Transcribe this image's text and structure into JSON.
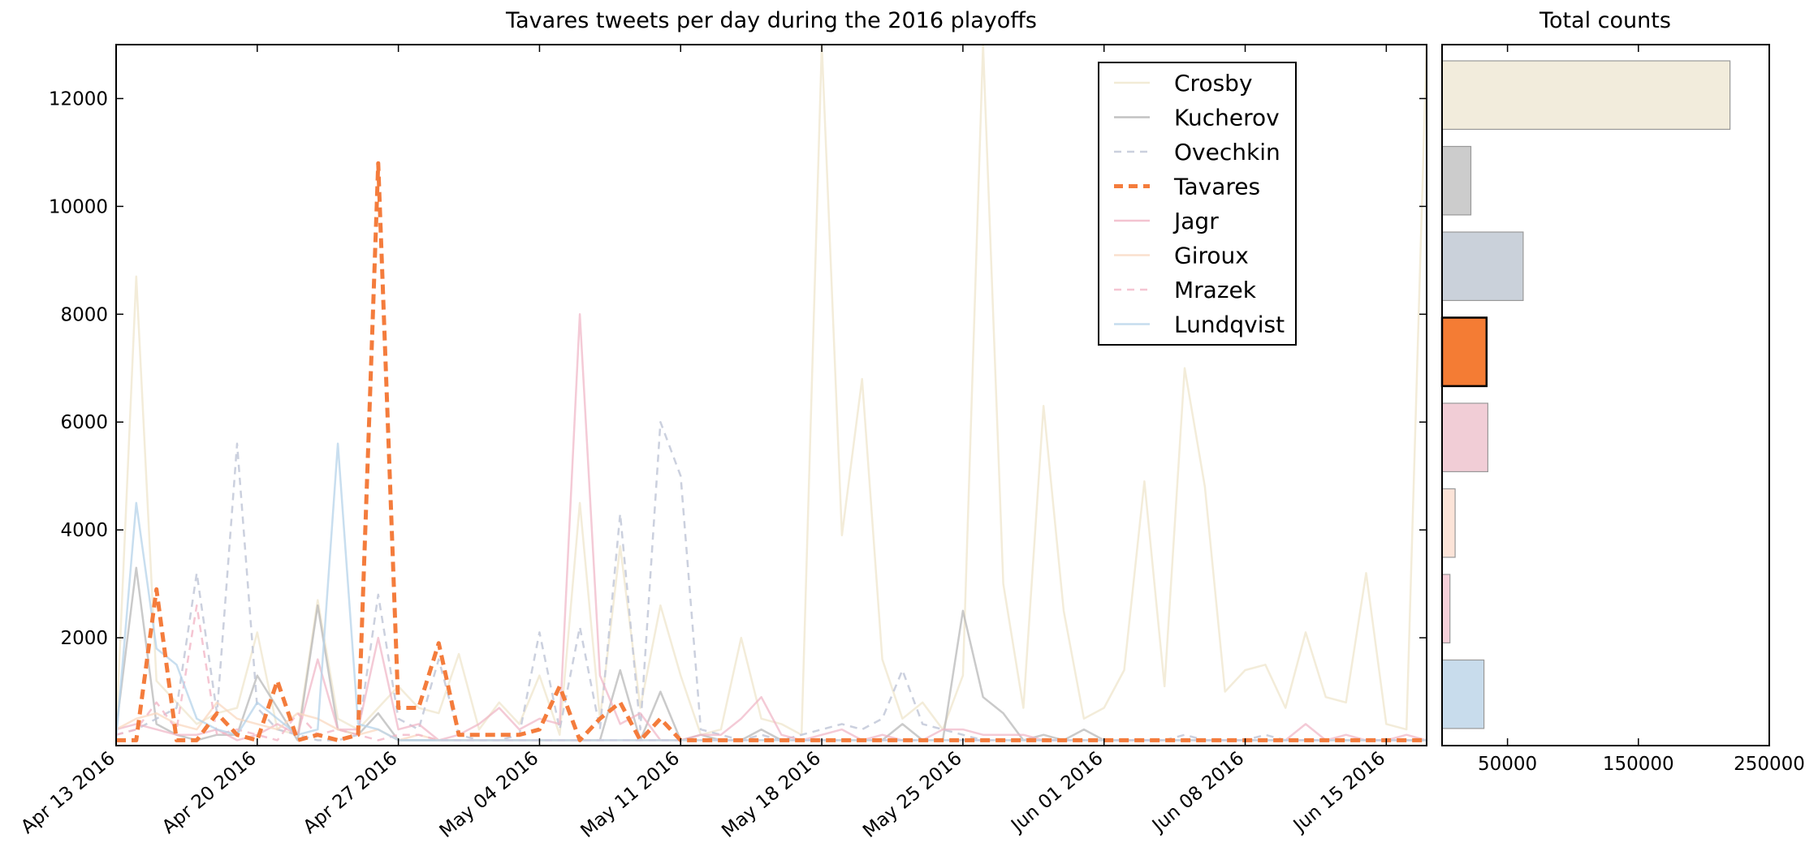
{
  "chart_data": [
    {
      "type": "line",
      "title": "Tavares tweets per day during the 2016 playoffs",
      "xlabel": "",
      "ylabel": "",
      "x_range": [
        "2016-04-13",
        "2016-06-17"
      ],
      "ylim": [
        0,
        13000
      ],
      "y_ticks": [
        2000,
        4000,
        6000,
        8000,
        10000,
        12000
      ],
      "x_ticks": [
        {
          "date": "2016-04-13",
          "label": "Apr 13 2016"
        },
        {
          "date": "2016-04-20",
          "label": "Apr 20 2016"
        },
        {
          "date": "2016-04-27",
          "label": "Apr 27 2016"
        },
        {
          "date": "2016-05-04",
          "label": "May 04 2016"
        },
        {
          "date": "2016-05-11",
          "label": "May 11 2016"
        },
        {
          "date": "2016-05-18",
          "label": "May 18 2016"
        },
        {
          "date": "2016-05-25",
          "label": "May 25 2016"
        },
        {
          "date": "2016-06-01",
          "label": "Jun 01 2016"
        },
        {
          "date": "2016-06-08",
          "label": "Jun 08 2016"
        },
        {
          "date": "2016-06-15",
          "label": "Jun 15 2016"
        }
      ],
      "grid": false,
      "legend_position": "top-right",
      "x": [
        "2016-04-13",
        "2016-04-14",
        "2016-04-15",
        "2016-04-16",
        "2016-04-17",
        "2016-04-18",
        "2016-04-19",
        "2016-04-20",
        "2016-04-21",
        "2016-04-22",
        "2016-04-23",
        "2016-04-24",
        "2016-04-25",
        "2016-04-26",
        "2016-04-27",
        "2016-04-28",
        "2016-04-29",
        "2016-04-30",
        "2016-05-01",
        "2016-05-02",
        "2016-05-03",
        "2016-05-04",
        "2016-05-05",
        "2016-05-06",
        "2016-05-07",
        "2016-05-08",
        "2016-05-09",
        "2016-05-10",
        "2016-05-11",
        "2016-05-12",
        "2016-05-13",
        "2016-05-14",
        "2016-05-15",
        "2016-05-16",
        "2016-05-17",
        "2016-05-18",
        "2016-05-19",
        "2016-05-20",
        "2016-05-21",
        "2016-05-22",
        "2016-05-23",
        "2016-05-24",
        "2016-05-25",
        "2016-05-26",
        "2016-05-27",
        "2016-05-28",
        "2016-05-29",
        "2016-05-30",
        "2016-05-31",
        "2016-06-01",
        "2016-06-02",
        "2016-06-03",
        "2016-06-04",
        "2016-06-05",
        "2016-06-06",
        "2016-06-07",
        "2016-06-08",
        "2016-06-09",
        "2016-06-10",
        "2016-06-11",
        "2016-06-12",
        "2016-06-13",
        "2016-06-14",
        "2016-06-15",
        "2016-06-16",
        "2016-06-17"
      ],
      "series": [
        {
          "name": "Crosby",
          "color": "#efe6cc",
          "dash": "solid",
          "width": 2.5,
          "opacity": 0.75,
          "values": [
            200,
            8700,
            1200,
            800,
            400,
            600,
            700,
            2100,
            300,
            200,
            2700,
            500,
            300,
            700,
            1100,
            700,
            600,
            1700,
            300,
            800,
            400,
            1300,
            200,
            4500,
            500,
            3700,
            700,
            2600,
            1300,
            200,
            300,
            2000,
            500,
            400,
            200,
            13000,
            3900,
            6800,
            1600,
            500,
            800,
            300,
            1300,
            13000,
            3000,
            700,
            6300,
            2500,
            500,
            700,
            1400,
            4900,
            1100,
            7000,
            4800,
            1000,
            1400,
            1500,
            700,
            2100,
            900,
            800,
            3200,
            400,
            300,
            13000
          ]
        },
        {
          "name": "Kucherov",
          "color": "#b3b3b3",
          "dash": "solid",
          "width": 2.5,
          "opacity": 0.7,
          "values": [
            300,
            3300,
            400,
            200,
            100,
            200,
            200,
            1300,
            700,
            100,
            2600,
            300,
            200,
            600,
            100,
            100,
            100,
            100,
            100,
            100,
            100,
            100,
            100,
            100,
            100,
            1400,
            100,
            1000,
            100,
            200,
            100,
            100,
            300,
            100,
            100,
            100,
            100,
            100,
            100,
            400,
            100,
            100,
            2500,
            900,
            600,
            100,
            200,
            100,
            300,
            100,
            100,
            100,
            100,
            100,
            100,
            100,
            100,
            100,
            100,
            100,
            100,
            100,
            100,
            100,
            100,
            100
          ]
        },
        {
          "name": "Ovechkin",
          "color": "#c2c8d8",
          "dash": "dashed",
          "width": 2.5,
          "opacity": 0.85,
          "values": [
            200,
            300,
            500,
            700,
            3200,
            600,
            5600,
            700,
            300,
            200,
            100,
            100,
            200,
            2800,
            500,
            300,
            1600,
            200,
            100,
            100,
            200,
            2100,
            300,
            2200,
            300,
            4300,
            300,
            6000,
            5000,
            300,
            200,
            100,
            200,
            100,
            200,
            300,
            400,
            300,
            500,
            1400,
            400,
            300,
            200,
            100,
            100,
            100,
            100,
            100,
            100,
            100,
            100,
            100,
            100,
            200,
            100,
            100,
            100,
            200,
            100,
            100,
            100,
            100,
            100,
            100,
            100,
            100
          ]
        },
        {
          "name": "Tavares",
          "color": "#f47c3c",
          "dash": "dashed",
          "width": 5,
          "opacity": 1,
          "values": [
            100,
            100,
            2900,
            100,
            100,
            600,
            200,
            100,
            1200,
            100,
            200,
            100,
            200,
            10800,
            700,
            700,
            1900,
            200,
            200,
            200,
            200,
            300,
            1100,
            100,
            500,
            800,
            100,
            500,
            100,
            100,
            100,
            100,
            100,
            100,
            100,
            100,
            100,
            100,
            100,
            100,
            100,
            100,
            100,
            100,
            100,
            100,
            100,
            100,
            100,
            100,
            100,
            100,
            100,
            100,
            100,
            100,
            100,
            100,
            100,
            100,
            100,
            100,
            100,
            100,
            100,
            100
          ]
        },
        {
          "name": "Jagr",
          "color": "#f0b4c4",
          "dash": "solid",
          "width": 2.5,
          "opacity": 0.7,
          "values": [
            300,
            400,
            300,
            200,
            200,
            300,
            100,
            200,
            400,
            200,
            1600,
            300,
            300,
            2000,
            300,
            400,
            100,
            200,
            400,
            700,
            300,
            500,
            400,
            8000,
            1300,
            400,
            600,
            100,
            100,
            200,
            200,
            500,
            900,
            200,
            100,
            200,
            300,
            100,
            200,
            100,
            100,
            300,
            300,
            200,
            200,
            200,
            100,
            100,
            100,
            100,
            100,
            100,
            100,
            100,
            100,
            100,
            100,
            100,
            100,
            400,
            100,
            200,
            100,
            100,
            200,
            100
          ]
        },
        {
          "name": "Giroux",
          "color": "#f9d8c0",
          "dash": "solid",
          "width": 2.5,
          "opacity": 0.75,
          "values": [
            300,
            500,
            600,
            400,
            300,
            800,
            500,
            400,
            300,
            600,
            500,
            300,
            200,
            300,
            100,
            200,
            100,
            100,
            100,
            100,
            100,
            100,
            100,
            100,
            100,
            100,
            100,
            100,
            100,
            100,
            100,
            100,
            100,
            100,
            100,
            100,
            100,
            100,
            100,
            100,
            100,
            100,
            100,
            100,
            100,
            100,
            100,
            100,
            100,
            100,
            100,
            100,
            100,
            100,
            100,
            100,
            100,
            100,
            100,
            100,
            100,
            100,
            100,
            100,
            100,
            100
          ]
        },
        {
          "name": "Mrazek",
          "color": "#f3b7c7",
          "dash": "dashed",
          "width": 2.5,
          "opacity": 0.8,
          "values": [
            200,
            300,
            800,
            300,
            2600,
            200,
            300,
            200,
            100,
            600,
            200,
            300,
            200,
            100,
            200,
            200,
            100,
            100,
            100,
            100,
            100,
            100,
            100,
            100,
            100,
            100,
            100,
            100,
            100,
            100,
            100,
            100,
            100,
            100,
            100,
            100,
            100,
            100,
            100,
            100,
            100,
            100,
            100,
            100,
            100,
            100,
            100,
            100,
            100,
            100,
            100,
            100,
            100,
            100,
            100,
            100,
            100,
            100,
            100,
            100,
            100,
            100,
            100,
            100,
            100,
            100
          ]
        },
        {
          "name": "Lundqvist",
          "color": "#b6d3ea",
          "dash": "solid",
          "width": 2.5,
          "opacity": 0.75,
          "values": [
            100,
            4500,
            1800,
            1500,
            500,
            300,
            200,
            800,
            500,
            200,
            300,
            5600,
            400,
            300,
            100,
            100,
            100,
            100,
            100,
            100,
            100,
            100,
            100,
            100,
            100,
            100,
            100,
            100,
            100,
            100,
            100,
            100,
            100,
            100,
            100,
            100,
            100,
            100,
            100,
            100,
            100,
            100,
            100,
            100,
            100,
            100,
            100,
            100,
            100,
            100,
            100,
            100,
            100,
            100,
            100,
            100,
            100,
            100,
            100,
            100,
            100,
            100,
            100,
            100,
            100,
            100
          ]
        }
      ]
    },
    {
      "type": "bar",
      "orientation": "horizontal",
      "title": "Total counts",
      "xlim": [
        0,
        250000
      ],
      "x_ticks": [
        50000,
        150000,
        250000
      ],
      "categories": [
        "Crosby",
        "Kucherov",
        "Ovechkin",
        "Tavares",
        "Jagr",
        "Giroux",
        "Mrazek",
        "Lundqvist"
      ],
      "values": [
        220000,
        22000,
        62000,
        34000,
        35000,
        10000,
        6000,
        32000
      ],
      "colors": [
        "#f2ecdc",
        "#cccccc",
        "#cad1da",
        "#f47c34",
        "#f1cdd6",
        "#fce4d8",
        "#f6d0da",
        "#c8dcec"
      ],
      "highlight": "Tavares"
    }
  ]
}
